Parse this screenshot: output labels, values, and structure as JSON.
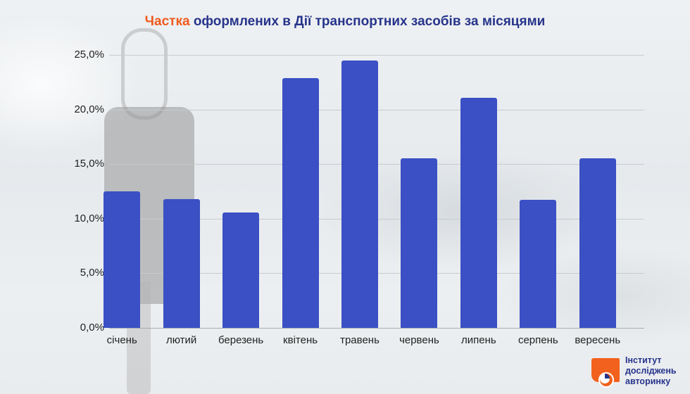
{
  "title": {
    "accent": "Частка",
    "rest": " оформлених в Дії транспортних засобів за місяцями"
  },
  "colors": {
    "bar": "#3a50c4",
    "title_accent": "#ef5a1b",
    "title_main": "#27348b",
    "logo_orange": "#f2611d",
    "logo_blue": "#27348b"
  },
  "y_ticks": [
    "25,0%",
    "20,0%",
    "15,0%",
    "10,0%",
    "5,0%",
    "0,0%"
  ],
  "x_ticks": [
    "січень",
    "лютий",
    "березень",
    "квітень",
    "травень",
    "червень",
    "липень",
    "серпень",
    "вересень"
  ],
  "logo": {
    "line1": "Інститут",
    "line2": "досліджень",
    "line3": "авторинку"
  },
  "chart_data": {
    "type": "bar",
    "title": "Частка оформлених в Дії транспортних засобів за місяцями",
    "xlabel": "",
    "ylabel": "",
    "categories": [
      "січень",
      "лютий",
      "березень",
      "квітень",
      "травень",
      "червень",
      "липень",
      "серпень",
      "вересень"
    ],
    "values": [
      12.5,
      11.8,
      10.6,
      22.9,
      24.5,
      15.5,
      21.1,
      11.7,
      15.5
    ],
    "unit": "%",
    "ylim": [
      0,
      25
    ],
    "yticks": [
      0,
      5,
      10,
      15,
      20,
      25
    ],
    "grid": true,
    "legend": null
  }
}
